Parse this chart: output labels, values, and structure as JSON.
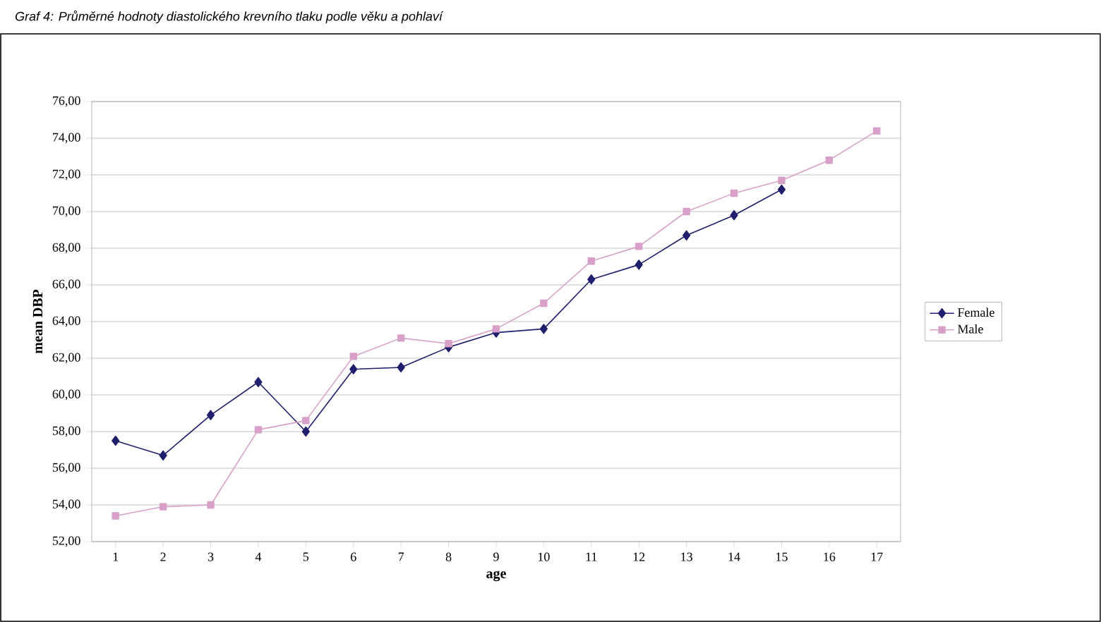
{
  "chart_data": {
    "type": "line",
    "title": "Graf 4: Průměrné hodnoty diastolického krevního tlaku podle věku a pohlaví",
    "xlabel": "age",
    "ylabel": "mean DBP",
    "categories": [
      "1",
      "2",
      "3",
      "4",
      "5",
      "6",
      "7",
      "8",
      "9",
      "10",
      "11",
      "12",
      "13",
      "14",
      "15",
      "16",
      "17"
    ],
    "series": [
      {
        "name": "Female",
        "color": "#1f1f6e",
        "marker": "diamond",
        "values": [
          57.5,
          56.7,
          58.9,
          60.7,
          58.0,
          61.4,
          61.5,
          62.6,
          63.4,
          63.6,
          66.3,
          67.1,
          68.7,
          69.8,
          71.2,
          null,
          null
        ]
      },
      {
        "name": "Male",
        "color": "#d8a0c8",
        "marker": "square",
        "values": [
          53.4,
          53.9,
          54.0,
          58.1,
          58.6,
          62.1,
          63.1,
          62.8,
          63.6,
          65.0,
          67.3,
          68.1,
          70.0,
          71.0,
          71.7,
          72.8,
          74.4
        ]
      }
    ],
    "ylim": [
      52,
      76
    ],
    "yticks": [
      {
        "value": 52,
        "label": "52,00"
      },
      {
        "value": 54,
        "label": "54,00"
      },
      {
        "value": 56,
        "label": "56,00"
      },
      {
        "value": 58,
        "label": "58,00"
      },
      {
        "value": 60,
        "label": "60,00"
      },
      {
        "value": 62,
        "label": "62,00"
      },
      {
        "value": 64,
        "label": "64,00"
      },
      {
        "value": 66,
        "label": "66,00"
      },
      {
        "value": 68,
        "label": "68,00"
      },
      {
        "value": 70,
        "label": "70,00"
      },
      {
        "value": 72,
        "label": "72,00"
      },
      {
        "value": 74,
        "label": "74,00"
      },
      {
        "value": 76,
        "label": "76,00"
      }
    ],
    "grid": "y",
    "legend": "right",
    "line_style": "solid"
  }
}
